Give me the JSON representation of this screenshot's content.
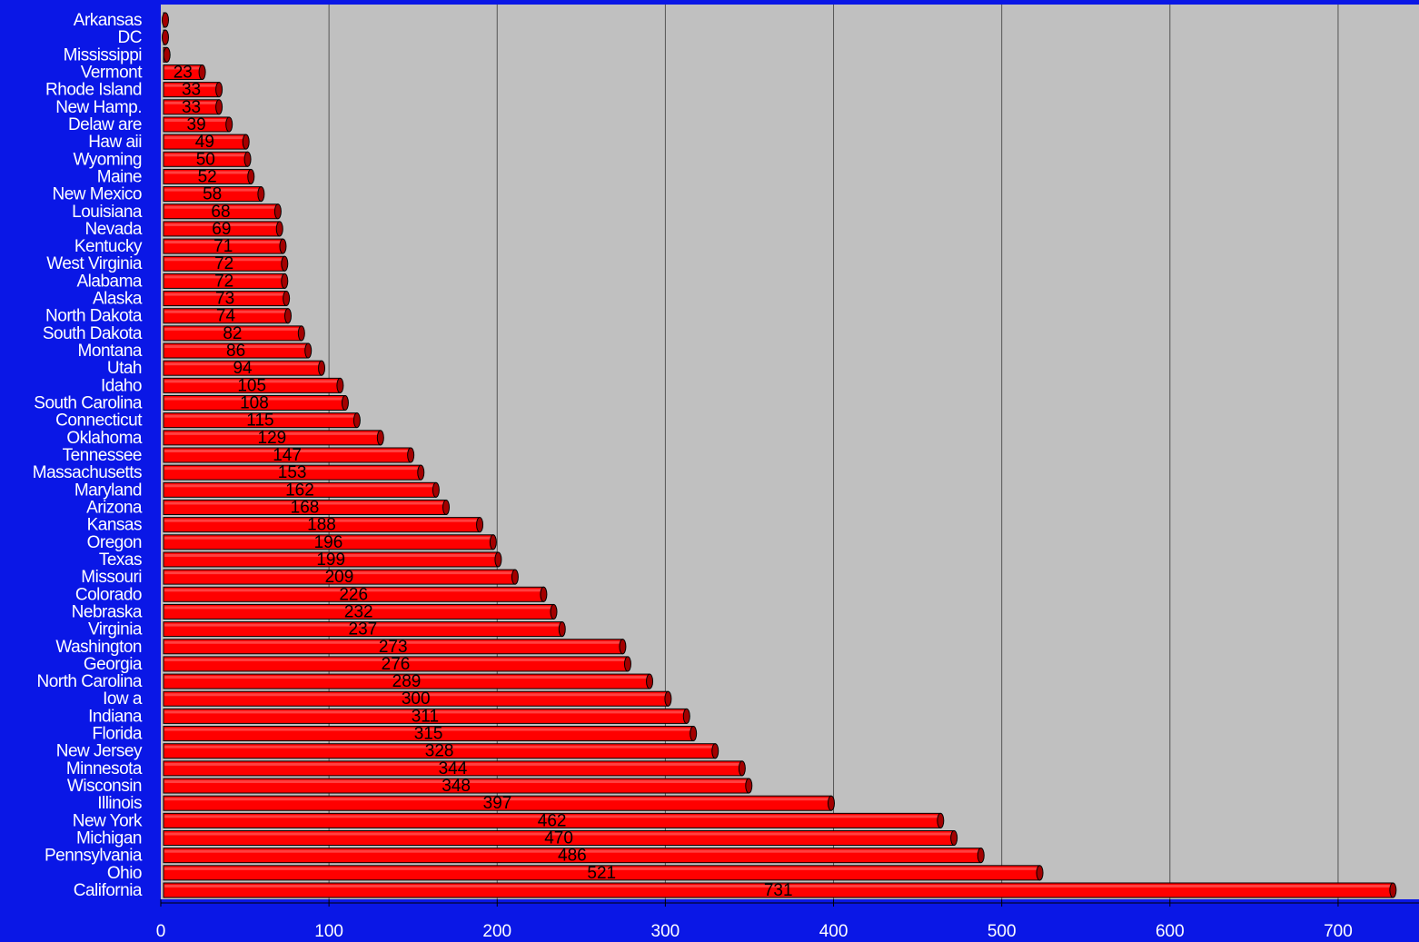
{
  "chart_data": {
    "type": "bar",
    "orientation": "horizontal",
    "categories": [
      "Arkansas",
      "DC",
      "Mississippi",
      "Vermont",
      "Rhode Island",
      "New Hamp.",
      "Delaw are",
      "Haw aii",
      "Wyoming",
      "Maine",
      "New Mexico",
      "Louisiana",
      "Nevada",
      "Kentucky",
      "West Virginia",
      "Alabama",
      "Alaska",
      "North Dakota",
      "South Dakota",
      "Montana",
      "Utah",
      "Idaho",
      "South Carolina",
      "Connecticut",
      "Oklahoma",
      "Tennessee",
      "Massachusetts",
      "Maryland",
      "Arizona",
      "Kansas",
      "Oregon",
      "Texas",
      "Missouri",
      "Colorado",
      "Nebraska",
      "Virginia",
      "Washington",
      "Georgia",
      "North Carolina",
      "Iow a",
      "Indiana",
      "Florida",
      "New Jersey",
      "Minnesota",
      "Wisconsin",
      "Illinois",
      "New York",
      "Michigan",
      "Pennsylvania",
      "Ohio",
      "California"
    ],
    "values": [
      1,
      1,
      2,
      23,
      33,
      33,
      39,
      49,
      50,
      52,
      58,
      68,
      69,
      71,
      72,
      72,
      73,
      74,
      82,
      86,
      94,
      105,
      108,
      115,
      129,
      147,
      153,
      162,
      168,
      188,
      196,
      199,
      209,
      226,
      232,
      237,
      273,
      276,
      289,
      300,
      311,
      315,
      328,
      344,
      348,
      397,
      462,
      470,
      486,
      521,
      731
    ],
    "value_labels": [
      "",
      "",
      "",
      "23",
      "33",
      "33",
      "39",
      "49",
      "50",
      "52",
      "58",
      "68",
      "69",
      "71",
      "72",
      "72",
      "73",
      "74",
      "82",
      "86",
      "94",
      "105",
      "108",
      "115",
      "129",
      "147",
      "153",
      "162",
      "168",
      "188",
      "196",
      "199",
      "209",
      "226",
      "232",
      "237",
      "273",
      "276",
      "289",
      "300",
      "311",
      "315",
      "328",
      "344",
      "348",
      "397",
      "462",
      "470",
      "486",
      "521",
      "731"
    ],
    "x_ticks": [
      "0",
      "100",
      "200",
      "300",
      "400",
      "500",
      "600",
      "700"
    ],
    "xlim": [
      0,
      740
    ],
    "grid": "vertical",
    "legend": "none",
    "title": "",
    "xlabel": "",
    "ylabel": "",
    "colors": {
      "background": "#0a17e6",
      "plot_area": "#c0c0c0",
      "bar_fill": "#ff0000",
      "bar_end": "#a40000",
      "bar_outline": "#000000",
      "gridline": "#555555",
      "text": "#ffffff"
    }
  }
}
